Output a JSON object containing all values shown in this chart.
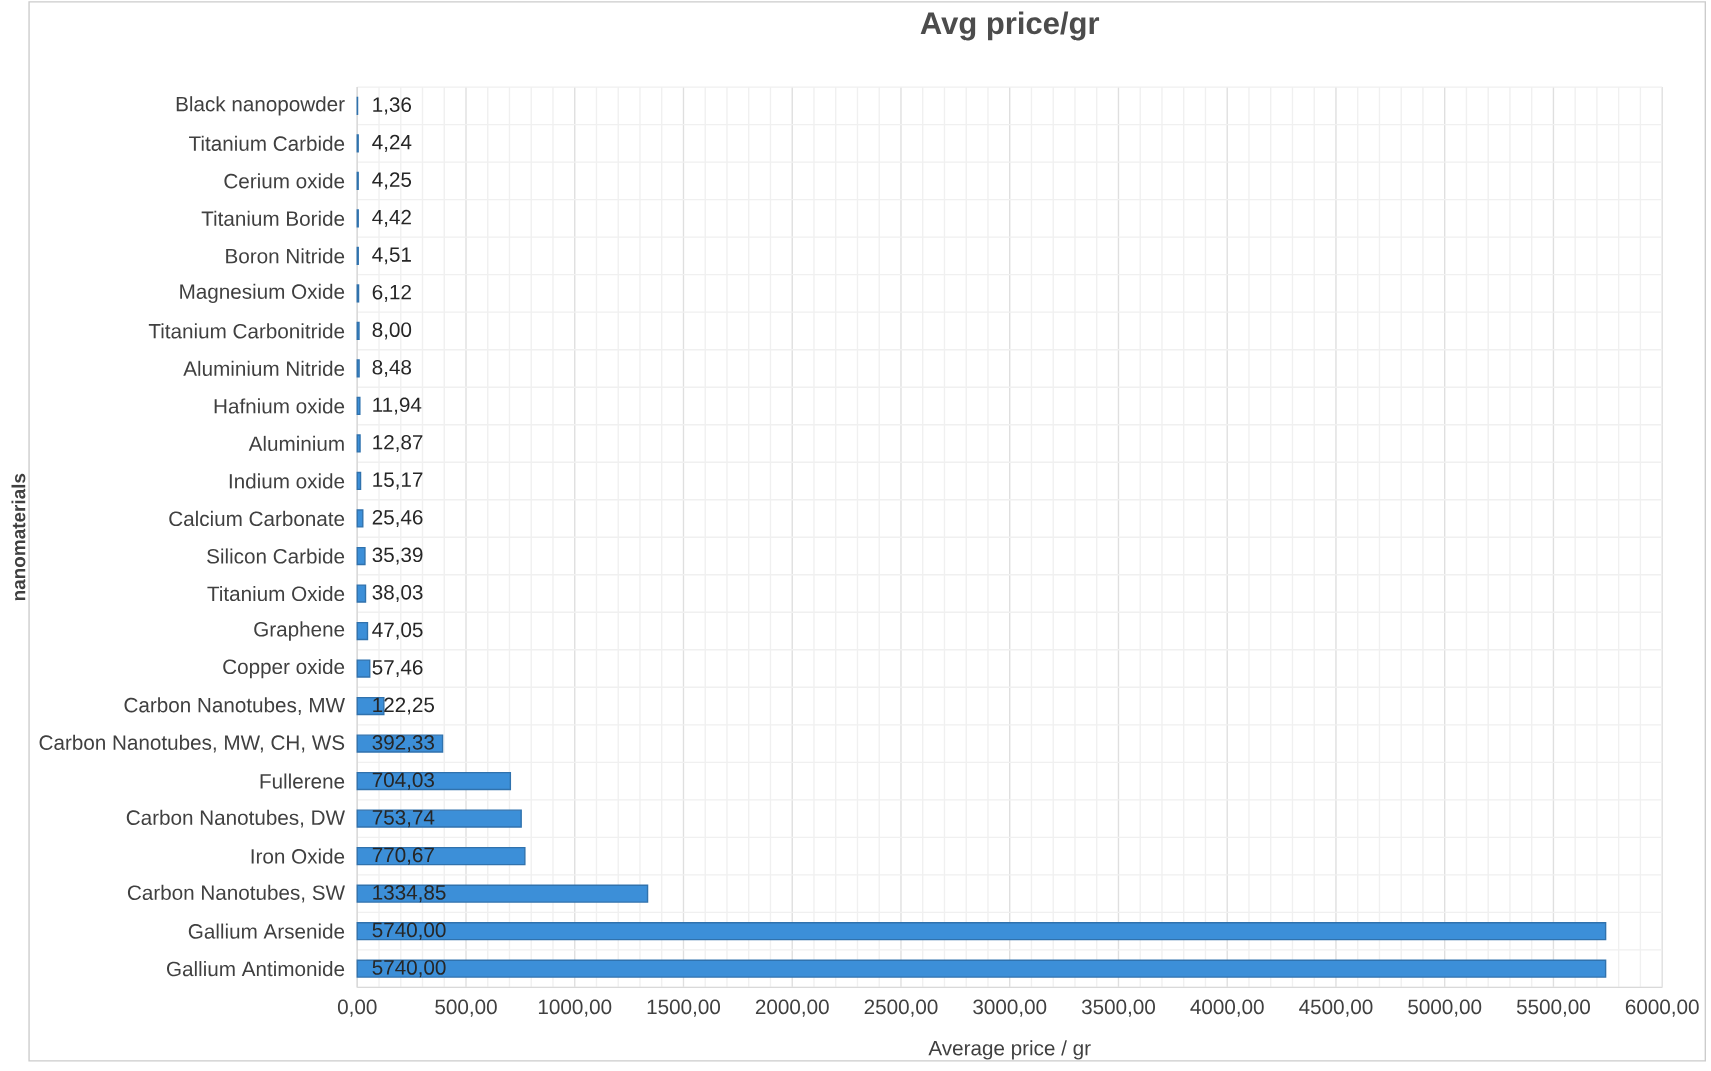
{
  "chart_data": {
    "type": "bar",
    "orientation": "horizontal",
    "title": "Avg price/gr",
    "xlabel": "Average price / gr",
    "ylabel": "nanomaterials",
    "categories": [
      "Black nanopowder",
      "Titanium Carbide",
      "Cerium oxide",
      "Titanium Boride",
      "Boron Nitride",
      "Magnesium Oxide",
      "Titanium Carbonitride",
      "Aluminium Nitride",
      "Hafnium oxide",
      "Aluminium",
      "Indium oxide",
      "Calcium Carbonate",
      "Silicon Carbide",
      "Titanium Oxide",
      "Graphene",
      "Copper oxide",
      "Carbon Nanotubes, MW",
      "Carbon Nanotubes, MW, CH, WS",
      "Fullerene",
      "Carbon Nanotubes, DW",
      "Iron Oxide",
      "Carbon Nanotubes, SW",
      "Gallium Arsenide",
      "Gallium Antimonide"
    ],
    "values": [
      1.36,
      4.24,
      4.25,
      4.42,
      4.51,
      6.12,
      8.0,
      8.48,
      11.94,
      12.87,
      15.17,
      25.46,
      35.39,
      38.03,
      47.05,
      57.46,
      122.25,
      392.33,
      704.03,
      753.74,
      770.67,
      1334.85,
      5740.0,
      5740.0
    ],
    "value_labels": [
      "1,36",
      "4,24",
      "4,25",
      "4,42",
      "4,51",
      "6,12",
      "8,00",
      "8,48",
      "11,94",
      "12,87",
      "15,17",
      "25,46",
      "35,39",
      "38,03",
      "47,05",
      "57,46",
      "122,25",
      "392,33",
      "704,03",
      "753,74",
      "770,67",
      "1334,85",
      "5740,00",
      "5740,00"
    ],
    "color": "#3c8fd8",
    "xlim": [
      0,
      6000
    ],
    "xticks": [
      {
        "value": 0,
        "label": "0,00"
      },
      {
        "value": 500,
        "label": "500,00"
      },
      {
        "value": 1000,
        "label": "1000,00"
      },
      {
        "value": 1500,
        "label": "1500,00"
      },
      {
        "value": 2000,
        "label": "2000,00"
      },
      {
        "value": 2500,
        "label": "2500,00"
      },
      {
        "value": 3000,
        "label": "3000,00"
      },
      {
        "value": 3500,
        "label": "3500,00"
      },
      {
        "value": 4000,
        "label": "4000,00"
      },
      {
        "value": 4500,
        "label": "4500,00"
      },
      {
        "value": 5000,
        "label": "5000,00"
      },
      {
        "value": 5500,
        "label": "5500,00"
      },
      {
        "value": 6000,
        "label": "6000,00"
      }
    ],
    "grid": true
  }
}
